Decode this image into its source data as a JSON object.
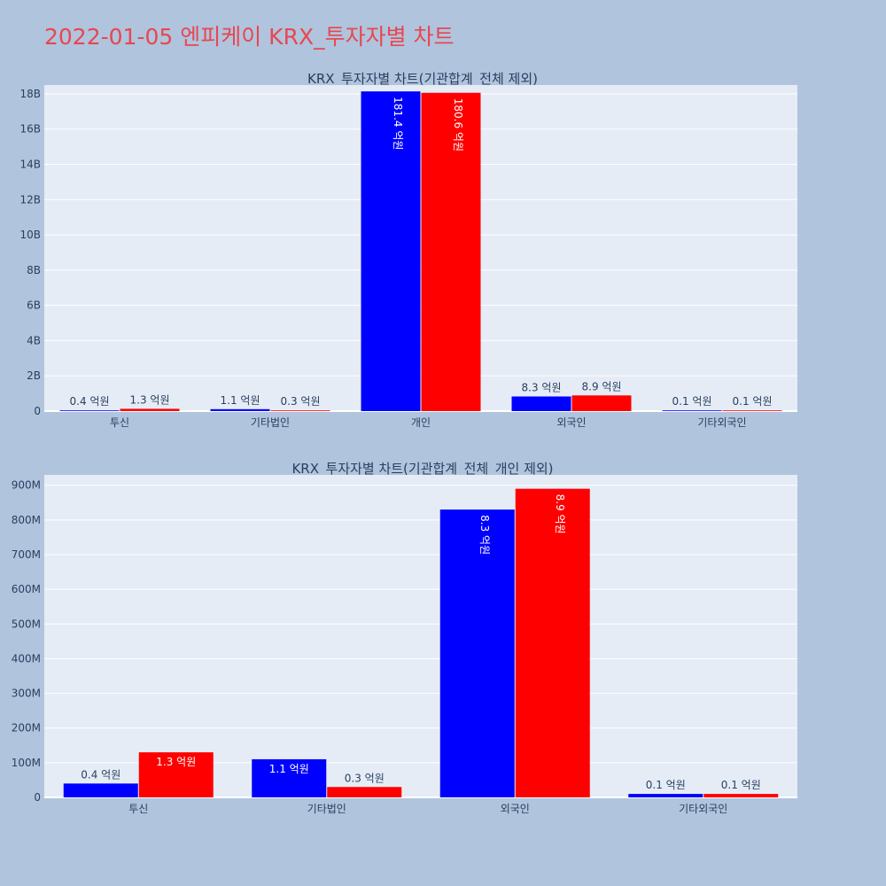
{
  "page": {
    "title": "2022-01-05 엔피케이 KRX_투자자별 차트"
  },
  "colors": {
    "buy": "#0000ff",
    "sell": "#ff0000",
    "plot_bg": "#e5ecf6",
    "page_bg": "#b0c4de",
    "title": "#e8474f"
  },
  "chart_data": [
    {
      "type": "bar",
      "title": "KRX_투자자별 차트(기관합계_전체 제외)",
      "categories": [
        "투신",
        "기타법인",
        "개인",
        "외국인",
        "기타외국인"
      ],
      "series": [
        {
          "values": [
            40000000,
            110000000,
            18140000000,
            830000000,
            10000000
          ],
          "labels": [
            "0.4 억원",
            "1.1 억원",
            "181.4 억원",
            "8.3 억원",
            "0.1 억원"
          ]
        },
        {
          "values": [
            130000000,
            30000000,
            18060000000,
            890000000,
            10000000
          ],
          "labels": [
            "1.3 억원",
            "0.3 억원",
            "180.6 억원",
            "8.9 억원",
            "0.1 억원"
          ]
        }
      ],
      "ylim": [
        0,
        18500000000
      ],
      "yticks": [
        0,
        2000000000,
        4000000000,
        6000000000,
        8000000000,
        10000000000,
        12000000000,
        14000000000,
        16000000000,
        18000000000
      ],
      "ytick_labels": [
        "0",
        "2B",
        "4B",
        "6B",
        "8B",
        "10B",
        "12B",
        "14B",
        "16B",
        "18B"
      ],
      "grid": true,
      "legend": "none"
    },
    {
      "type": "bar",
      "title": "KRX_투자자별 차트(기관합계_전체_개인 제외)",
      "categories": [
        "투신",
        "기타법인",
        "외국인",
        "기타외국인"
      ],
      "series": [
        {
          "values": [
            40000000,
            110000000,
            830000000,
            10000000
          ],
          "labels": [
            "0.4 억원",
            "1.1 억원",
            "8.3 억원",
            "0.1 억원"
          ]
        },
        {
          "values": [
            130000000,
            30000000,
            890000000,
            10000000
          ],
          "labels": [
            "1.3 억원",
            "0.3 억원",
            "8.9 억원",
            "0.1 억원"
          ]
        }
      ],
      "ylim": [
        0,
        930000000
      ],
      "yticks": [
        0,
        100000000,
        200000000,
        300000000,
        400000000,
        500000000,
        600000000,
        700000000,
        800000000,
        900000000
      ],
      "ytick_labels": [
        "0",
        "100M",
        "200M",
        "300M",
        "400M",
        "500M",
        "600M",
        "700M",
        "800M",
        "900M"
      ],
      "grid": true,
      "legend": "none"
    }
  ]
}
